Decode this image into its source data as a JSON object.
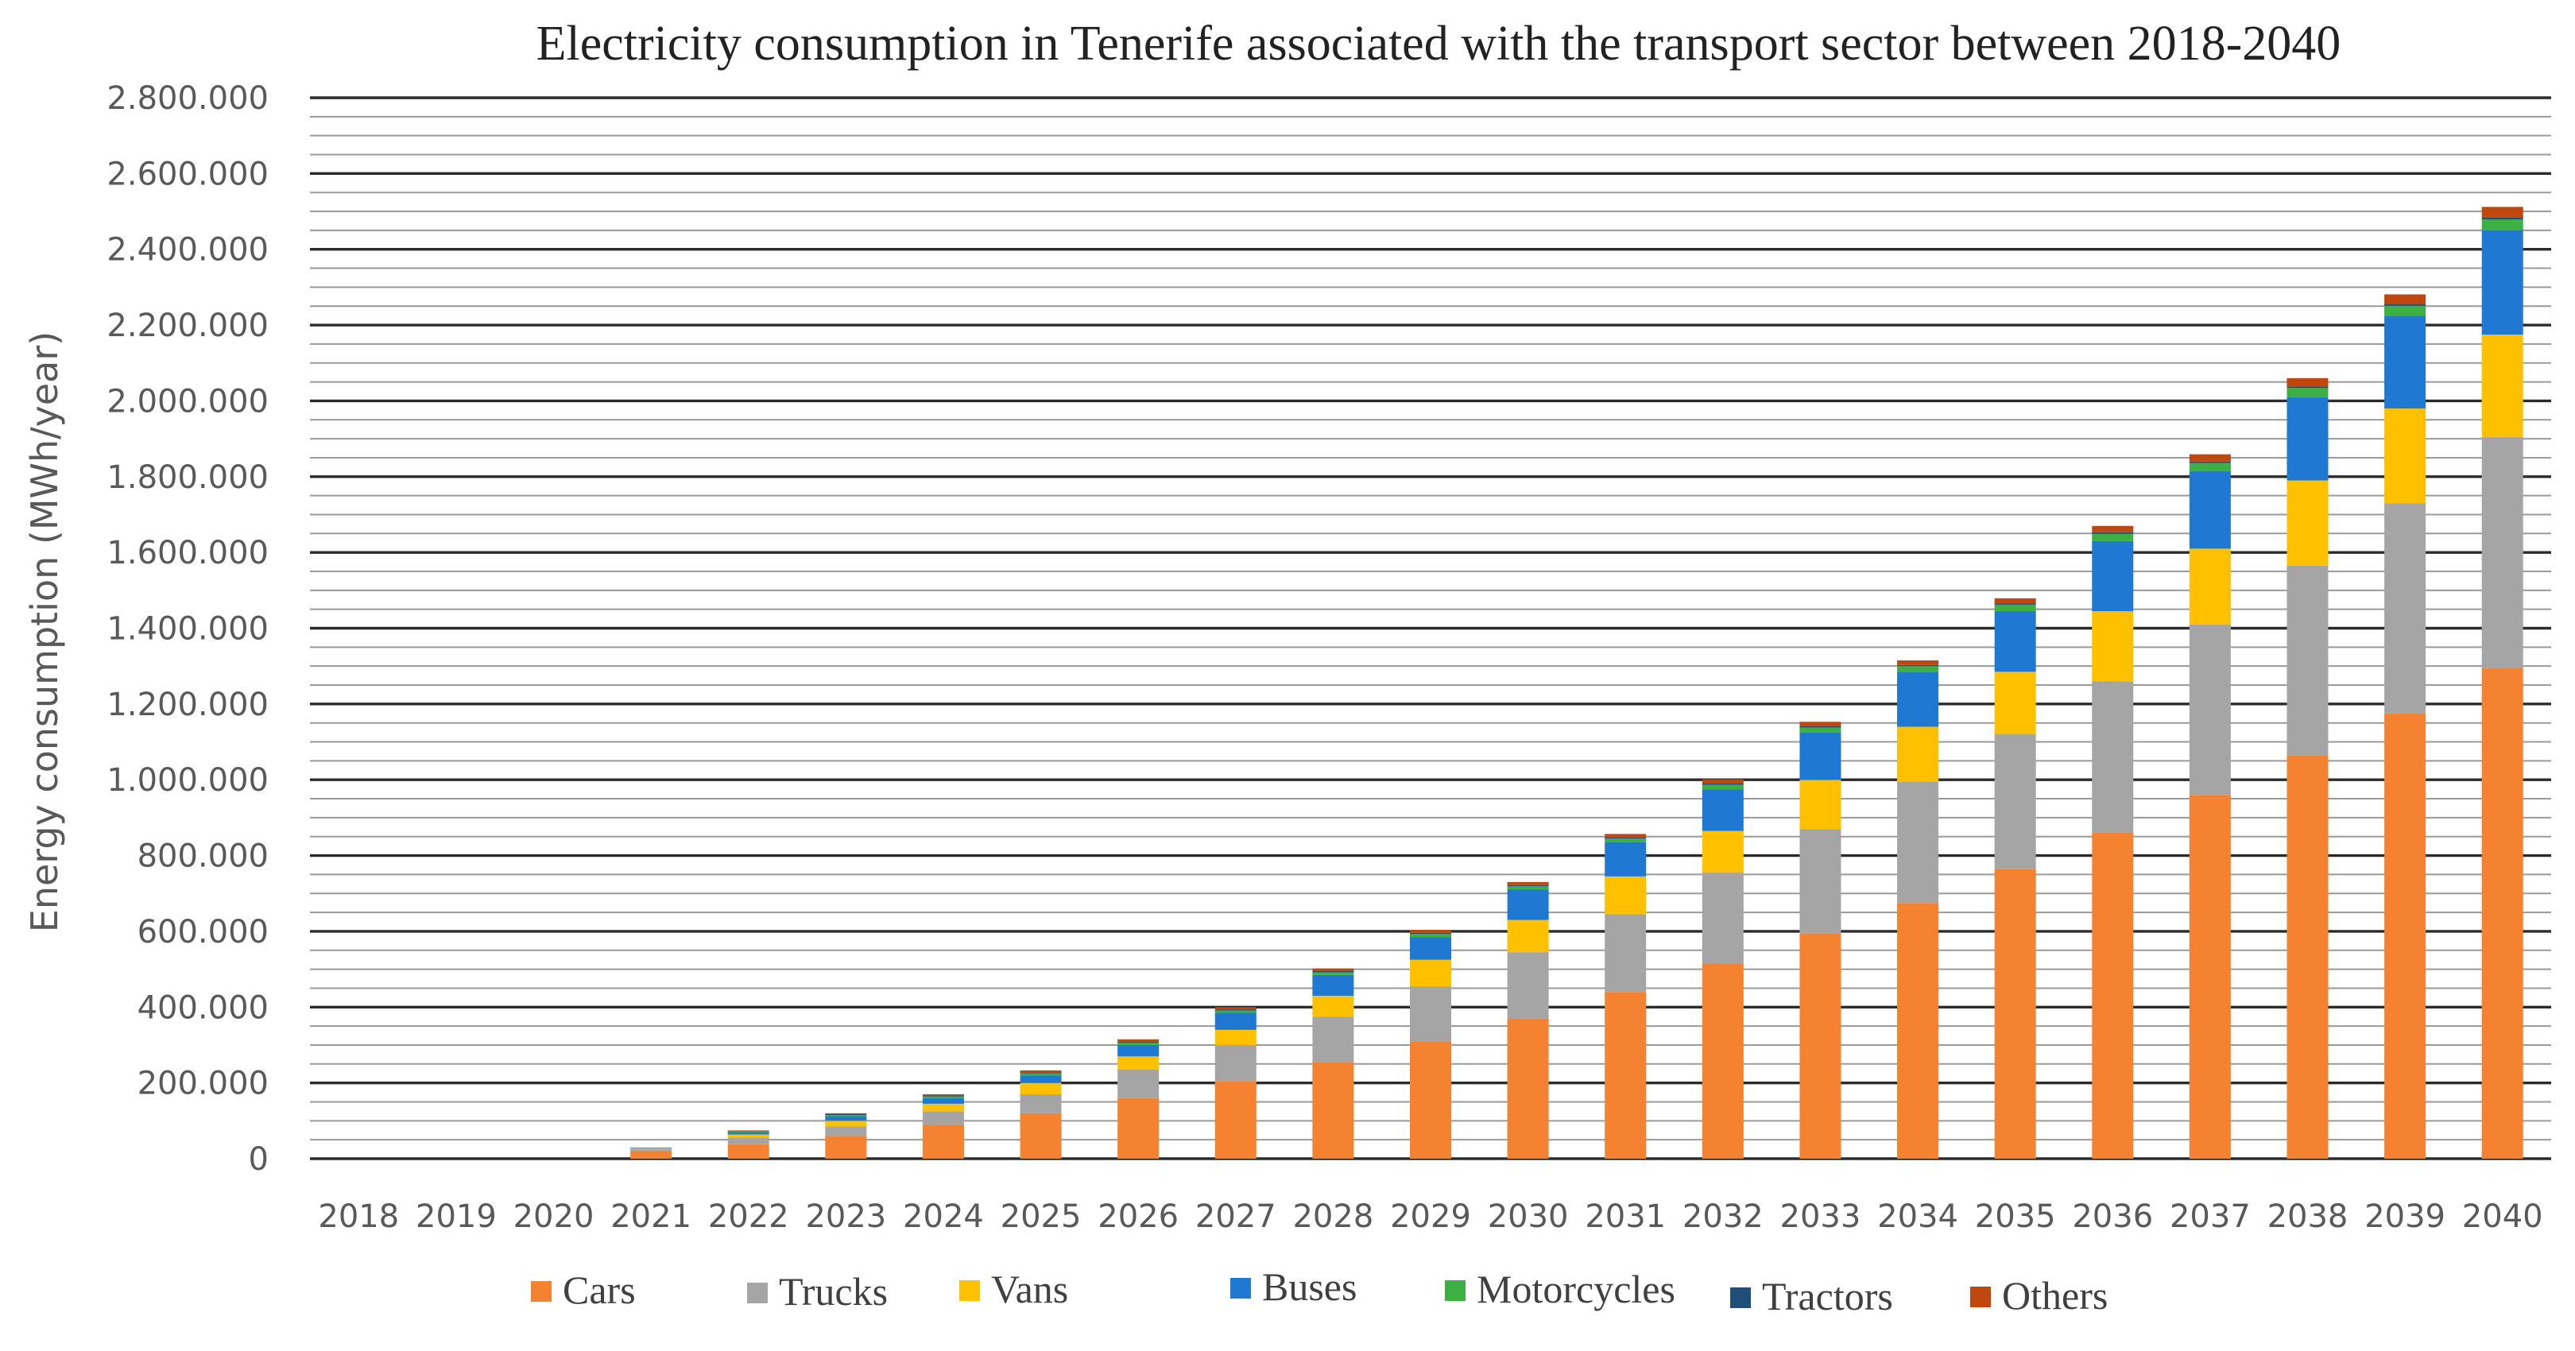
{
  "chart_data": {
    "type": "bar",
    "stacked": true,
    "title": "Electricity consumption in Tenerife associated with the transport sector between 2018-2040",
    "xlabel": "",
    "ylabel": "Energy consumption (MWh/year)",
    "ylim": [
      0,
      2800000
    ],
    "ytick_values": [
      0,
      200000,
      400000,
      600000,
      800000,
      1000000,
      1200000,
      1400000,
      1600000,
      1800000,
      2000000,
      2200000,
      2400000,
      2600000,
      2800000
    ],
    "ytick_labels": [
      "0",
      "200.000",
      "400.000",
      "600.000",
      "800.000",
      "1.000.000",
      "1.200.000",
      "1.400.000",
      "1.600.000",
      "1.800.000",
      "2.000.000",
      "2.200.000",
      "2.400.000",
      "2.600.000",
      "2.800.000"
    ],
    "grid": true,
    "legend_position": "bottom",
    "categories": [
      "2018",
      "2019",
      "2020",
      "2021",
      "2022",
      "2023",
      "2024",
      "2025",
      "2026",
      "2027",
      "2028",
      "2029",
      "2030",
      "2031",
      "2032",
      "2033",
      "2034",
      "2035",
      "2036",
      "2037",
      "2038",
      "2039",
      "2040"
    ],
    "series": [
      {
        "name": "Cars",
        "color": "#F58231",
        "values": [
          0,
          0,
          0,
          20000,
          38000,
          60000,
          90000,
          120000,
          160000,
          205000,
          255000,
          310000,
          370000,
          440000,
          515000,
          595000,
          675000,
          765000,
          860000,
          960000,
          1065000,
          1175000,
          1295000
        ]
      },
      {
        "name": "Trucks",
        "color": "#A5A5A5",
        "values": [
          0,
          0,
          0,
          5000,
          18000,
          25000,
          35000,
          50000,
          75000,
          95000,
          120000,
          145000,
          175000,
          205000,
          240000,
          275000,
          320000,
          355000,
          400000,
          450000,
          500000,
          555000,
          610000
        ]
      },
      {
        "name": "Vans",
        "color": "#FFC000",
        "values": [
          0,
          0,
          0,
          2000,
          8000,
          15000,
          20000,
          30000,
          35000,
          40000,
          55000,
          70000,
          85000,
          100000,
          110000,
          130000,
          145000,
          165000,
          185000,
          200000,
          225000,
          250000,
          270000
        ]
      },
      {
        "name": "Buses",
        "color": "#1F78D1",
        "values": [
          0,
          0,
          0,
          1000,
          6000,
          12000,
          15000,
          20000,
          30000,
          45000,
          55000,
          60000,
          80000,
          90000,
          110000,
          125000,
          145000,
          160000,
          185000,
          205000,
          220000,
          245000,
          275000
        ]
      },
      {
        "name": "Motorcycles",
        "color": "#3CB043",
        "values": [
          0,
          0,
          0,
          500,
          1500,
          3000,
          4000,
          5000,
          6000,
          6000,
          7000,
          8000,
          9000,
          10000,
          12000,
          13000,
          15000,
          17000,
          19000,
          21000,
          24000,
          26000,
          29000
        ]
      },
      {
        "name": "Tractors",
        "color": "#1F4E79",
        "values": [
          0,
          0,
          0,
          500,
          1500,
          2500,
          3000,
          3000,
          3000,
          3000,
          3000,
          3000,
          3000,
          3000,
          3000,
          3000,
          3000,
          3000,
          4000,
          4000,
          4000,
          5000,
          5000
        ]
      },
      {
        "name": "Others",
        "color": "#C0480E",
        "values": [
          0,
          0,
          0,
          500,
          1500,
          2500,
          3000,
          5000,
          6000,
          6000,
          7000,
          8000,
          8000,
          9000,
          11000,
          12000,
          12000,
          14000,
          17000,
          19000,
          22000,
          25000,
          28000
        ]
      }
    ],
    "legend_labels": [
      "Cars",
      "Trucks",
      "Vans",
      "Buses",
      "Motorcycles",
      "Tractors",
      "Others"
    ]
  }
}
